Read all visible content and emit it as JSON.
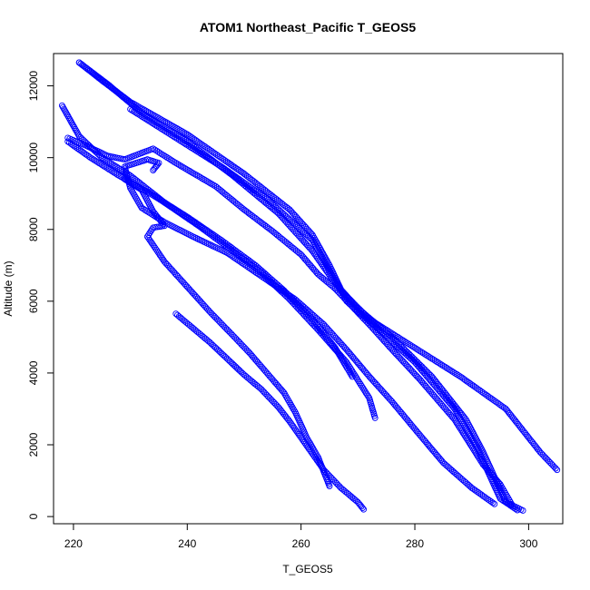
{
  "chart_data": {
    "type": "scatter",
    "title": "ATOM1 Northeast_Pacific T_GEOS5",
    "xlabel": "T_GEOS5",
    "ylabel": "Altitude (m)",
    "xlim": [
      216.5,
      306
    ],
    "ylim": [
      -200,
      12900
    ],
    "xticks": [
      220,
      240,
      260,
      280,
      300
    ],
    "yticks": [
      0,
      2000,
      4000,
      6000,
      8000,
      10000,
      12000
    ],
    "grid": false,
    "marker": "open-circle",
    "color": "#0000ff",
    "series": [
      {
        "points": [
          [
            221,
            12650
          ],
          [
            225,
            12150
          ],
          [
            230,
            11550
          ],
          [
            240,
            10650
          ],
          [
            250,
            9550
          ],
          [
            258,
            8550
          ],
          [
            262,
            7850
          ],
          [
            265,
            7000
          ],
          [
            268,
            6000
          ],
          [
            273,
            5300
          ],
          [
            280,
            4300
          ],
          [
            287,
            3000
          ],
          [
            291,
            1900
          ],
          [
            293,
            1200
          ],
          [
            295,
            500
          ],
          [
            298,
            180
          ]
        ]
      },
      {
        "points": [
          [
            221,
            12650
          ],
          [
            226,
            12050
          ],
          [
            232,
            11250
          ],
          [
            240,
            10450
          ],
          [
            248,
            9500
          ],
          [
            256,
            8450
          ],
          [
            262,
            7400
          ],
          [
            266,
            6500
          ],
          [
            270,
            5800
          ],
          [
            276,
            5000
          ],
          [
            283,
            3900
          ],
          [
            289,
            2700
          ],
          [
            292,
            1800
          ],
          [
            294,
            1100
          ],
          [
            296,
            400
          ],
          [
            299,
            170
          ]
        ]
      },
      {
        "points": [
          [
            230,
            11350
          ],
          [
            238,
            10550
          ],
          [
            246,
            9750
          ],
          [
            254,
            8850
          ],
          [
            262,
            7700
          ],
          [
            267,
            6300
          ],
          [
            272,
            5500
          ],
          [
            280,
            4700
          ],
          [
            288,
            3900
          ],
          [
            296,
            3000
          ],
          [
            302,
            1800
          ],
          [
            305,
            1300
          ]
        ]
      },
      {
        "points": [
          [
            218,
            11450
          ],
          [
            221,
            10600
          ],
          [
            225,
            10000
          ],
          [
            230,
            9500
          ],
          [
            236,
            8750
          ],
          [
            242,
            8100
          ],
          [
            248,
            7400
          ],
          [
            253,
            6800
          ],
          [
            258,
            6050
          ],
          [
            263,
            5200
          ],
          [
            268,
            4300
          ],
          [
            272,
            3300
          ],
          [
            273,
            2750
          ]
        ]
      },
      {
        "points": [
          [
            219,
            10450
          ],
          [
            223,
            10000
          ],
          [
            228,
            9500
          ],
          [
            234,
            8950
          ],
          [
            240,
            8350
          ],
          [
            246,
            7700
          ],
          [
            252,
            7000
          ],
          [
            257,
            6300
          ],
          [
            262,
            5500
          ],
          [
            266,
            4700
          ],
          [
            269,
            3900
          ]
        ]
      },
      {
        "points": [
          [
            219,
            10550
          ],
          [
            222,
            10350
          ],
          [
            226,
            10050
          ],
          [
            229,
            9950
          ],
          [
            234,
            10250
          ],
          [
            238,
            9850
          ],
          [
            245,
            9200
          ],
          [
            250,
            8550
          ],
          [
            255,
            7950
          ],
          [
            260,
            7300
          ],
          [
            263,
            6750
          ],
          [
            266,
            6350
          ],
          [
            269,
            5850
          ],
          [
            272,
            5350
          ],
          [
            276,
            4650
          ],
          [
            281,
            3800
          ],
          [
            287,
            2700
          ],
          [
            292,
            1450
          ],
          [
            295,
            900
          ],
          [
            297,
            350
          ]
        ]
      },
      {
        "points": [
          [
            234,
            9650
          ],
          [
            235,
            9850
          ],
          [
            233,
            9950
          ],
          [
            229,
            9750
          ],
          [
            230,
            9150
          ],
          [
            232,
            8600
          ],
          [
            236,
            8200
          ],
          [
            241,
            7800
          ],
          [
            247,
            7350
          ],
          [
            253,
            6700
          ],
          [
            259,
            6050
          ],
          [
            264,
            5350
          ],
          [
            268,
            4650
          ],
          [
            272,
            3900
          ],
          [
            276,
            3200
          ],
          [
            281,
            2250
          ],
          [
            285,
            1500
          ],
          [
            290,
            800
          ],
          [
            294,
            350
          ]
        ]
      },
      {
        "points": [
          [
            229,
            9400
          ],
          [
            232,
            9100
          ],
          [
            234,
            8500
          ],
          [
            236,
            8100
          ],
          [
            234,
            8050
          ],
          [
            233,
            7800
          ],
          [
            236,
            7100
          ],
          [
            240,
            6400
          ],
          [
            244,
            5700
          ],
          [
            248,
            5050
          ],
          [
            251,
            4550
          ],
          [
            254,
            4000
          ],
          [
            257,
            3450
          ],
          [
            259,
            2900
          ],
          [
            261,
            2200
          ],
          [
            263,
            1650
          ],
          [
            264,
            1250
          ],
          [
            265,
            850
          ]
        ]
      },
      {
        "points": [
          [
            238,
            5650
          ],
          [
            241,
            5250
          ],
          [
            244,
            4850
          ],
          [
            247,
            4400
          ],
          [
            250,
            3950
          ],
          [
            253,
            3550
          ],
          [
            256,
            3050
          ],
          [
            258,
            2650
          ],
          [
            260,
            2200
          ],
          [
            262,
            1750
          ],
          [
            264,
            1300
          ],
          [
            267,
            800
          ],
          [
            270,
            400
          ],
          [
            271,
            200
          ]
        ]
      }
    ]
  }
}
